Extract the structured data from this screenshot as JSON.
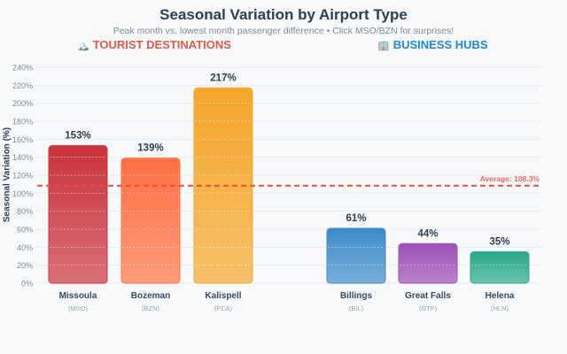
{
  "chart_data": {
    "type": "bar",
    "title": "Seasonal Variation by Airport Type",
    "subtitle": "Peak month vs. lowest month passenger difference • Click MSO/BZN for surprises!",
    "ylabel": "Seasonal Variation (%)",
    "xlabel": "",
    "ylim": [
      0,
      240
    ],
    "yticks": [
      0,
      20,
      40,
      60,
      80,
      100,
      120,
      140,
      160,
      180,
      200,
      220,
      240
    ],
    "ytick_suffix": "%",
    "grid": true,
    "groups": [
      {
        "label": "TOURIST DESTINATIONS",
        "icon": "mountain-icon",
        "icon_glyph": "🏔️",
        "color": "#e05a4a"
      },
      {
        "label": "BUSINESS HUBS",
        "icon": "office-building-icon",
        "icon_glyph": "🏢",
        "color": "#1e88d6"
      }
    ],
    "categories": [
      "Missoula",
      "Bozeman",
      "Kalispell",
      "Billings",
      "Great Falls",
      "Helena"
    ],
    "codes": [
      "(MSO)",
      "(BZN)",
      "(FCA)",
      "(BIL)",
      "(GTF)",
      "(HLN)"
    ],
    "group_index": [
      0,
      0,
      0,
      1,
      1,
      1
    ],
    "values": [
      153,
      139,
      217,
      61,
      44,
      35
    ],
    "value_labels": [
      "153%",
      "139%",
      "217%",
      "61%",
      "44%",
      "35%"
    ],
    "colors": [
      "#c8323c",
      "#ff7043",
      "#f4a62a",
      "#3d8bc9",
      "#9b4fb6",
      "#2aa88a"
    ],
    "average": 108.3,
    "average_label": "Average: 108.3%",
    "average_color": "#e74c3c"
  }
}
